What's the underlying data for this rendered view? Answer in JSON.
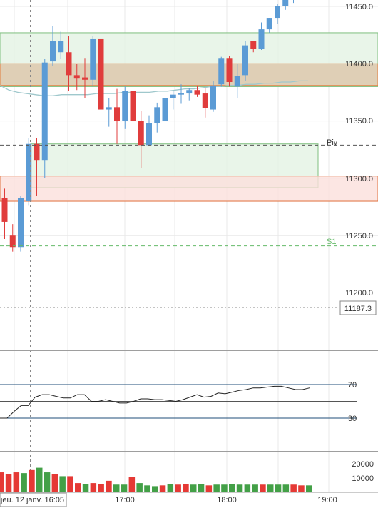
{
  "chart_data": [
    {
      "type": "candlestick",
      "name": "price",
      "y_ticks": [
        "11450.0",
        "11400.0",
        "11350.0",
        "11300.0",
        "11250.0",
        "11200.0"
      ],
      "y_tick_values": [
        11450,
        11400,
        11350,
        11300,
        11250,
        11200
      ],
      "ylim": [
        11154,
        11458
      ],
      "x_labels": [
        "jeu. 12 janv. 16:05",
        "17:00",
        "18:00",
        "19:00"
      ],
      "crosshair_price_label": "11187.3",
      "pivot_label": "Piv",
      "pivot_value": 11329,
      "s1_label": "S1",
      "s1_value": 11241,
      "zones": [
        {
          "kind": "green",
          "top": 11427,
          "bottom": 11380
        },
        {
          "kind": "orange",
          "top": 11400,
          "bottom": 11381
        },
        {
          "kind": "green",
          "top": 11330,
          "bottom": 11292
        },
        {
          "kind": "red",
          "top": 11302,
          "bottom": 11280
        }
      ],
      "moving_average": [
        11381,
        11377,
        11375,
        11374,
        11373,
        11372,
        11372,
        11373,
        11373,
        11373,
        11373,
        11374,
        11374,
        11374,
        11375,
        11375,
        11375,
        11375,
        11376,
        11376,
        11377,
        11378,
        11378,
        11379,
        11380,
        11380,
        11381,
        11381,
        11382,
        11382,
        11383,
        11383,
        11384,
        11384,
        11385,
        11385
      ],
      "candles": [
        {
          "o": 11283,
          "h": 11291,
          "l": 11247,
          "c": 11262
        },
        {
          "o": 11250,
          "h": 11260,
          "l": 11236,
          "c": 11240
        },
        {
          "o": 11240,
          "h": 11285,
          "l": 11236,
          "c": 11283
        },
        {
          "o": 11280,
          "h": 11335,
          "l": 11276,
          "c": 11330
        },
        {
          "o": 11330,
          "h": 11335,
          "l": 11285,
          "c": 11316
        },
        {
          "o": 11316,
          "h": 11404,
          "l": 11300,
          "c": 11401
        },
        {
          "o": 11402,
          "h": 11433,
          "l": 11398,
          "c": 11420
        },
        {
          "o": 11410,
          "h": 11428,
          "l": 11404,
          "c": 11420
        },
        {
          "o": 11410,
          "h": 11424,
          "l": 11376,
          "c": 11390
        },
        {
          "o": 11390,
          "h": 11400,
          "l": 11377,
          "c": 11387
        },
        {
          "o": 11388,
          "h": 11405,
          "l": 11370,
          "c": 11386
        },
        {
          "o": 11386,
          "h": 11424,
          "l": 11380,
          "c": 11422
        },
        {
          "o": 11422,
          "h": 11428,
          "l": 11355,
          "c": 11360
        },
        {
          "o": 11360,
          "h": 11370,
          "l": 11345,
          "c": 11362
        },
        {
          "o": 11362,
          "h": 11378,
          "l": 11330,
          "c": 11350
        },
        {
          "o": 11350,
          "h": 11380,
          "l": 11343,
          "c": 11376
        },
        {
          "o": 11376,
          "h": 11379,
          "l": 11343,
          "c": 11350
        },
        {
          "o": 11350,
          "h": 11359,
          "l": 11309,
          "c": 11329
        },
        {
          "o": 11329,
          "h": 11355,
          "l": 11328,
          "c": 11348
        },
        {
          "o": 11348,
          "h": 11366,
          "l": 11340,
          "c": 11362
        },
        {
          "o": 11350,
          "h": 11376,
          "l": 11349,
          "c": 11370
        },
        {
          "o": 11370,
          "h": 11376,
          "l": 11360,
          "c": 11373
        },
        {
          "o": 11373,
          "h": 11382,
          "l": 11365,
          "c": 11374
        },
        {
          "o": 11374,
          "h": 11379,
          "l": 11368,
          "c": 11377
        },
        {
          "o": 11377,
          "h": 11381,
          "l": 11371,
          "c": 11373
        },
        {
          "o": 11374,
          "h": 11379,
          "l": 11353,
          "c": 11361
        },
        {
          "o": 11360,
          "h": 11385,
          "l": 11358,
          "c": 11381
        },
        {
          "o": 11382,
          "h": 11406,
          "l": 11380,
          "c": 11405
        },
        {
          "o": 11405,
          "h": 11407,
          "l": 11380,
          "c": 11384
        },
        {
          "o": 11380,
          "h": 11400,
          "l": 11370,
          "c": 11389
        },
        {
          "o": 11390,
          "h": 11420,
          "l": 11385,
          "c": 11416
        },
        {
          "o": 11420,
          "h": 11420,
          "l": 11410,
          "c": 11413
        },
        {
          "o": 11413,
          "h": 11436,
          "l": 11412,
          "c": 11430
        },
        {
          "o": 11430,
          "h": 11440,
          "l": 11427,
          "c": 11440
        },
        {
          "o": 11440,
          "h": 11452,
          "l": 11435,
          "c": 11450
        },
        {
          "o": 11450,
          "h": 11458,
          "l": 11447,
          "c": 11456
        },
        {
          "o": 11456,
          "h": 11460,
          "l": 11453,
          "c": 11458
        }
      ]
    },
    {
      "type": "line",
      "name": "rsi",
      "y_ticks": [
        "70",
        "30"
      ],
      "y_tick_values": [
        70,
        30
      ],
      "mid_value": 50,
      "ylim": [
        20,
        80
      ],
      "values": [
        30,
        30,
        38,
        45,
        45,
        55,
        58,
        58,
        56,
        54,
        54,
        58,
        58,
        50,
        50,
        52,
        50,
        48,
        48,
        50,
        53,
        53,
        52,
        52,
        51,
        50,
        52,
        55,
        58,
        55,
        56,
        60,
        59,
        61,
        63,
        64,
        66,
        66,
        67,
        68,
        68,
        66,
        64,
        64,
        66
      ]
    },
    {
      "type": "bar",
      "name": "volume",
      "y_ticks": [
        "20000",
        "10000"
      ],
      "y_tick_values": [
        20000,
        10000
      ],
      "ylim": [
        0,
        24000
      ],
      "bars": [
        {
          "v": 13000,
          "dir": "down"
        },
        {
          "v": 12000,
          "dir": "down"
        },
        {
          "v": 13000,
          "dir": "down"
        },
        {
          "v": 12500,
          "dir": "up"
        },
        {
          "v": 14500,
          "dir": "down"
        },
        {
          "v": 16000,
          "dir": "up"
        },
        {
          "v": 13000,
          "dir": "up"
        },
        {
          "v": 12000,
          "dir": "down"
        },
        {
          "v": 10500,
          "dir": "up"
        },
        {
          "v": 10500,
          "dir": "down"
        },
        {
          "v": 6000,
          "dir": "down"
        },
        {
          "v": 5500,
          "dir": "up"
        },
        {
          "v": 6000,
          "dir": "down"
        },
        {
          "v": 5500,
          "dir": "down"
        },
        {
          "v": 7500,
          "dir": "down"
        },
        {
          "v": 5000,
          "dir": "up"
        },
        {
          "v": 5000,
          "dir": "up"
        },
        {
          "v": 9800,
          "dir": "down"
        },
        {
          "v": 6000,
          "dir": "up"
        },
        {
          "v": 4500,
          "dir": "up"
        },
        {
          "v": 4000,
          "dir": "up"
        },
        {
          "v": 4500,
          "dir": "down"
        },
        {
          "v": 5500,
          "dir": "up"
        },
        {
          "v": 5000,
          "dir": "down"
        },
        {
          "v": 5500,
          "dir": "down"
        },
        {
          "v": 5000,
          "dir": "up"
        },
        {
          "v": 5500,
          "dir": "up"
        },
        {
          "v": 4500,
          "dir": "down"
        },
        {
          "v": 5000,
          "dir": "up"
        },
        {
          "v": 5000,
          "dir": "up"
        },
        {
          "v": 5500,
          "dir": "up"
        },
        {
          "v": 5000,
          "dir": "up"
        },
        {
          "v": 5000,
          "dir": "up"
        },
        {
          "v": 5000,
          "dir": "up"
        },
        {
          "v": 5000,
          "dir": "down"
        },
        {
          "v": 5000,
          "dir": "up"
        },
        {
          "v": 5000,
          "dir": "up"
        },
        {
          "v": 5000,
          "dir": "up"
        },
        {
          "v": 5000,
          "dir": "down"
        },
        {
          "v": 4500,
          "dir": "down"
        },
        {
          "v": 4500,
          "dir": "up"
        }
      ]
    }
  ],
  "colors": {
    "up": "#5b9bd5",
    "down": "#e03c3c",
    "vol_up": "#43a047",
    "vol_down": "#e53935",
    "zone_green_fill": "#e3f2e3",
    "zone_green_stroke": "#7fbf7f",
    "zone_orange_fill": "#decbb0",
    "zone_orange_stroke": "#e07b39",
    "zone_red_fill": "#fbe0dc",
    "zone_red_stroke": "#e0703c",
    "ma": "#9fc8cc",
    "rsi_line": "#222222",
    "rsi_band": "#1f4e79",
    "grid": "#e8e8e8",
    "pivot": "#555555",
    "s1": "#66bb6a"
  }
}
